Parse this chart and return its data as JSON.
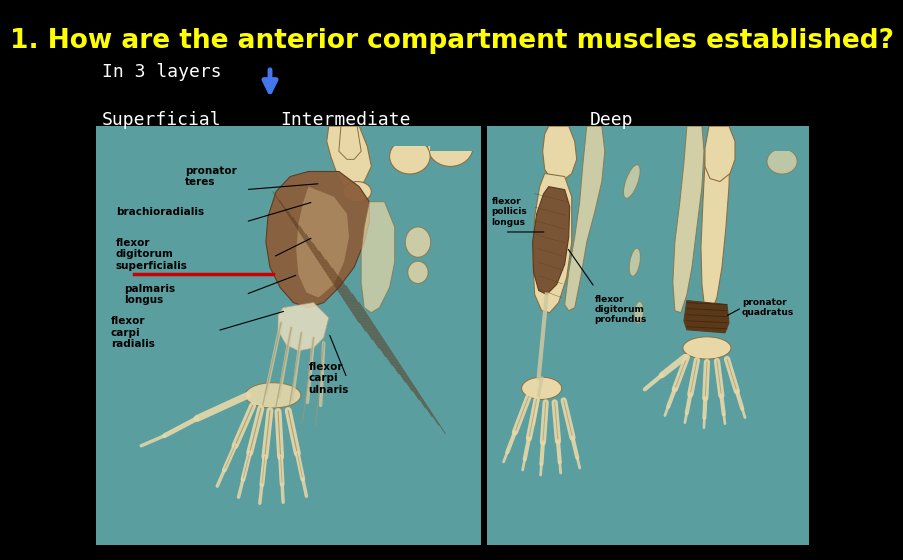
{
  "bg_color": "#000000",
  "title": "1. How are the anterior compartment muscles established?",
  "title_color": "#FFFF00",
  "title_fontsize": 19,
  "line1": "In 3 layers",
  "line1_color": "#FFFFFF",
  "line1_fontsize": 13,
  "label_superficial": "Superficial",
  "label_intermediate": "Intermediate",
  "label_deep": "Deep",
  "label_color": "#FFFFFF",
  "label_fontsize": 13,
  "arrow_color": "#4477EE",
  "teal_bg": "#5A9EA0",
  "bone_color": "#E8D8A8",
  "bone_edge": "#8B7040",
  "muscle_color": "#8B5E3C",
  "muscle_dark": "#5C3A1E",
  "muscle_mid": "#A0724A",
  "red_line": "#CC0000",
  "text_label_color": "#000000"
}
